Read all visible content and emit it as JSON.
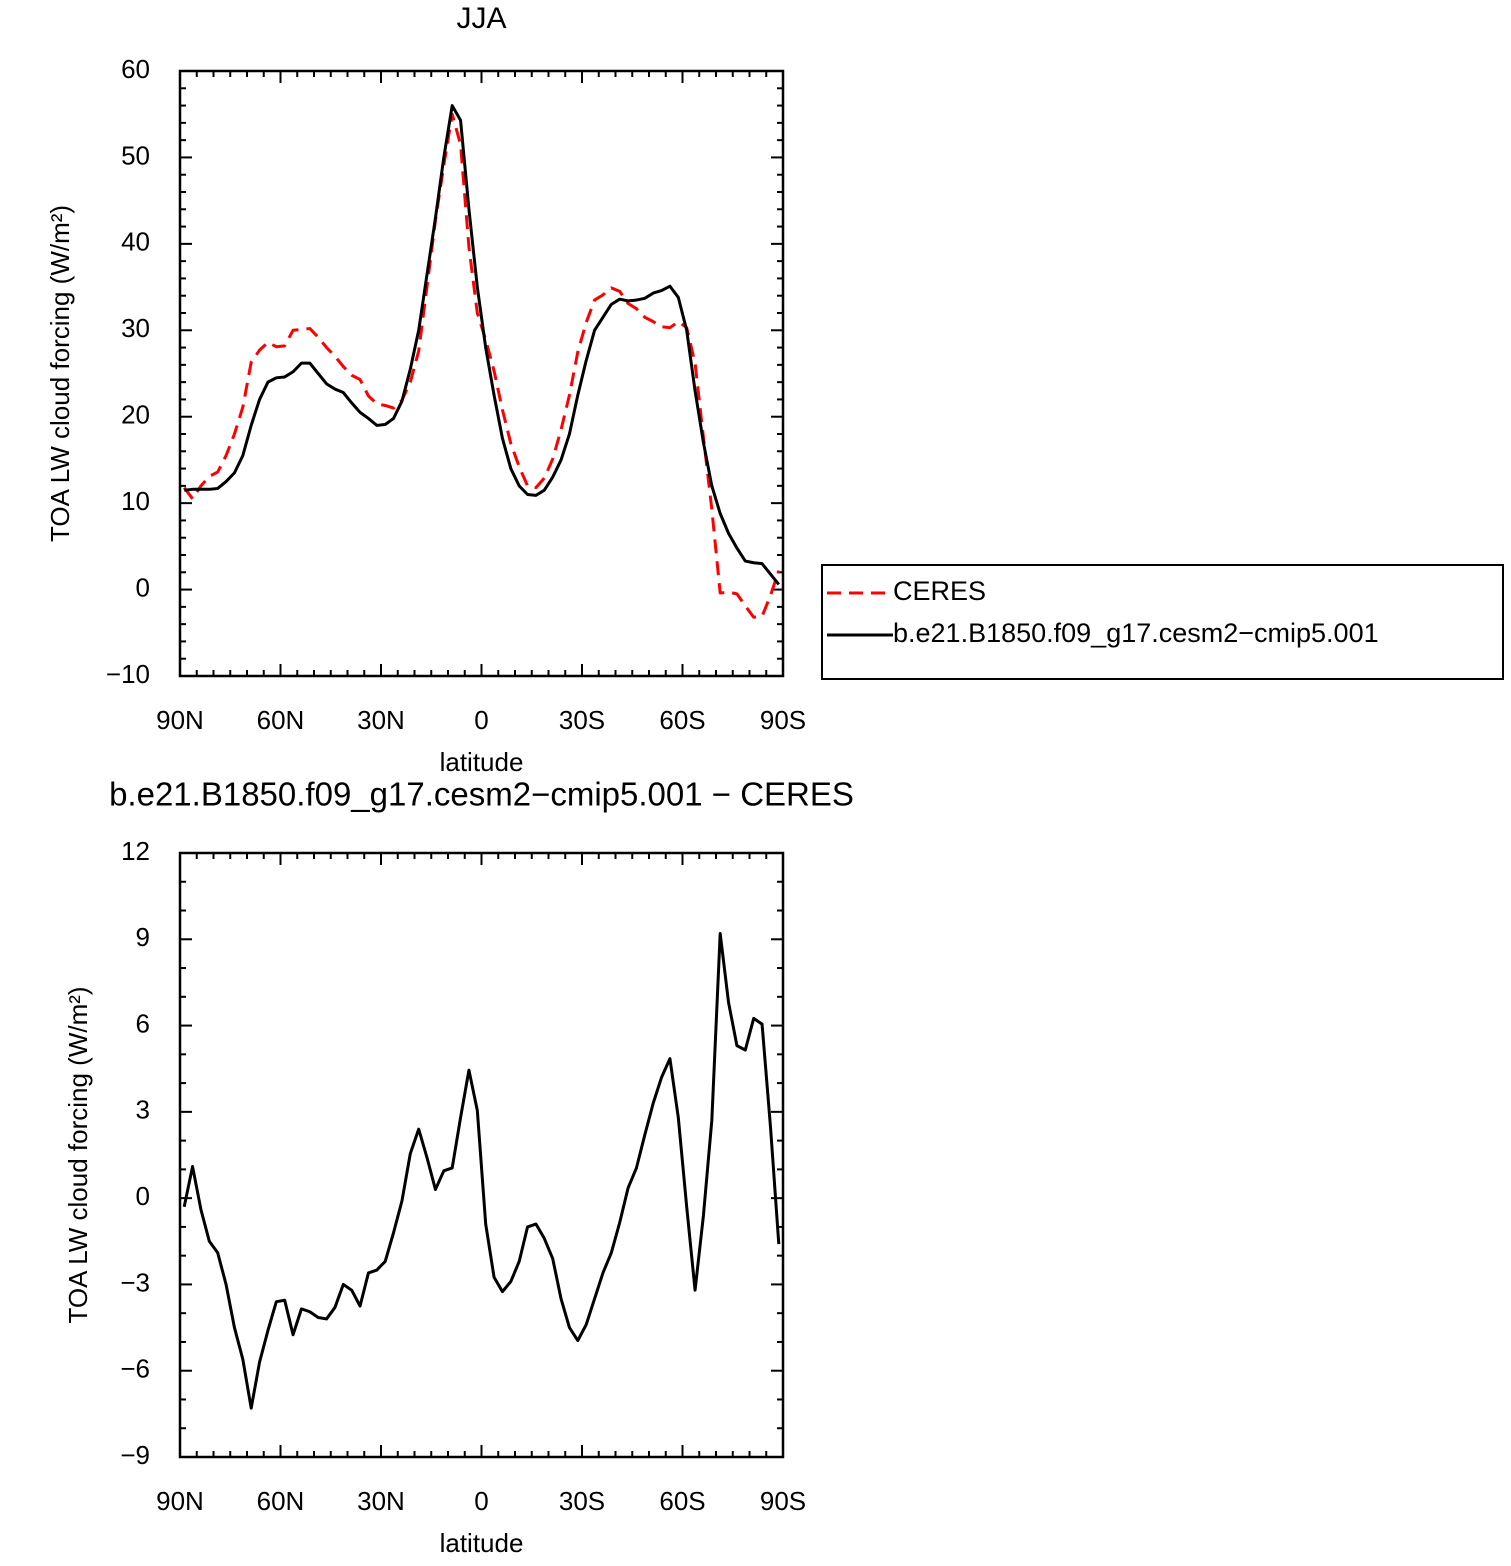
{
  "chart_data": [
    {
      "type": "line",
      "title": "JJA",
      "xlabel": "latitude",
      "ylabel": "TOA LW cloud forcing (W/m²)",
      "x": [
        88.75,
        86.25,
        83.75,
        81.25,
        78.75,
        76.25,
        73.75,
        71.25,
        68.75,
        66.25,
        63.75,
        61.25,
        58.75,
        56.25,
        53.75,
        51.25,
        48.75,
        46.25,
        43.75,
        41.25,
        38.75,
        36.25,
        33.75,
        31.25,
        28.75,
        26.25,
        23.75,
        21.25,
        18.75,
        16.25,
        13.75,
        11.25,
        8.75,
        6.25,
        3.75,
        1.25,
        -1.25,
        -3.75,
        -6.25,
        -8.75,
        -11.25,
        -13.75,
        -16.25,
        -18.75,
        -21.25,
        -23.75,
        -26.25,
        -28.75,
        -31.25,
        -33.75,
        -36.25,
        -38.75,
        -41.25,
        -43.75,
        -46.25,
        -48.75,
        -51.25,
        -53.75,
        -56.25,
        -58.75,
        -61.25,
        -63.75,
        -66.25,
        -68.75,
        -71.25,
        -73.75,
        -76.25,
        -78.75,
        -81.25,
        -83.75,
        -86.25,
        -88.75
      ],
      "xlim": [
        90,
        -90
      ],
      "xticks": [
        {
          "value": 90,
          "label": "90N"
        },
        {
          "value": 60,
          "label": "60N"
        },
        {
          "value": 30,
          "label": "30N"
        },
        0,
        {
          "value": -30,
          "label": "30S"
        },
        {
          "value": -60,
          "label": "60S"
        },
        {
          "value": -90,
          "label": "90S"
        }
      ],
      "xminorticks": [
        85,
        80,
        75,
        70,
        65,
        55,
        50,
        45,
        40,
        35,
        25,
        20,
        15,
        10,
        5,
        -5,
        -10,
        -15,
        -20,
        -25,
        -35,
        -40,
        -45,
        -50,
        -55,
        -65,
        -70,
        -75,
        -80,
        -85
      ],
      "ylim": [
        -10,
        60
      ],
      "yticks": [
        {
          "value": -10,
          "label": "−10"
        },
        0,
        10,
        20,
        30,
        40,
        50,
        60
      ],
      "yminorticks": [
        -8,
        -6,
        -4,
        -2,
        2,
        4,
        6,
        8,
        12,
        14,
        16,
        18,
        22,
        24,
        26,
        28,
        32,
        34,
        36,
        38,
        42,
        44,
        46,
        48,
        52,
        54,
        56,
        58
      ],
      "legend": "outside-right",
      "series": [
        {
          "name": "CERES",
          "color": "#ff0000",
          "dash": "dashed",
          "values": [
            11.8,
            10.5,
            12.0,
            13.1,
            13.6,
            15.5,
            18.0,
            21.1,
            26.3,
            27.7,
            28.6,
            28.1,
            28.2,
            30.0,
            30.1,
            30.2,
            29.2,
            28.0,
            27.0,
            25.8,
            24.8,
            24.3,
            22.4,
            21.5,
            21.3,
            21.0,
            21.9,
            24.0,
            27.6,
            35.1,
            42.7,
            49.1,
            55.0,
            51.5,
            39.6,
            32.0,
            28.9,
            25.3,
            20.8,
            16.9,
            14.2,
            12.0,
            11.8,
            12.9,
            15.1,
            18.5,
            22.5,
            27.5,
            30.9,
            33.5,
            34.1,
            34.9,
            34.5,
            33.1,
            32.5,
            31.5,
            31.0,
            30.4,
            30.3,
            31.0,
            30.3,
            26.2,
            17.6,
            9.3,
            -0.4,
            -0.3,
            -0.5,
            -1.9,
            -3.2,
            -3.1,
            -0.7,
            2.2
          ]
        },
        {
          "name": "b.e21.B1850.f09_g17.cesm2−cmip5.001",
          "color": "#000000",
          "dash": "solid",
          "values": [
            11.5,
            11.6,
            11.6,
            11.6,
            11.7,
            12.5,
            13.5,
            15.5,
            19.0,
            22.0,
            24.0,
            24.5,
            24.6,
            25.2,
            26.2,
            26.2,
            25.0,
            23.8,
            23.2,
            22.8,
            21.6,
            20.5,
            19.8,
            19.0,
            19.1,
            19.8,
            21.8,
            25.5,
            30.0,
            36.5,
            43.0,
            50.0,
            56.0,
            54.3,
            44.0,
            35.0,
            28.0,
            22.5,
            17.5,
            14.0,
            12.0,
            11.0,
            10.9,
            11.5,
            13.0,
            15.0,
            18.0,
            22.5,
            26.5,
            30.0,
            31.5,
            33.0,
            33.6,
            33.4,
            33.5,
            33.7,
            34.3,
            34.6,
            35.1,
            33.8,
            30.0,
            23.0,
            17.0,
            12.0,
            8.8,
            6.5,
            4.8,
            3.3,
            3.1,
            3.0,
            1.8,
            0.6
          ]
        }
      ]
    },
    {
      "type": "line",
      "title": "b.e21.B1850.f09_g17.cesm2−cmip5.001 − CERES",
      "xlabel": "latitude",
      "ylabel": "TOA LW cloud forcing (W/m²)",
      "x": [
        88.75,
        86.25,
        83.75,
        81.25,
        78.75,
        76.25,
        73.75,
        71.25,
        68.75,
        66.25,
        63.75,
        61.25,
        58.75,
        56.25,
        53.75,
        51.25,
        48.75,
        46.25,
        43.75,
        41.25,
        38.75,
        36.25,
        33.75,
        31.25,
        28.75,
        26.25,
        23.75,
        21.25,
        18.75,
        16.25,
        13.75,
        11.25,
        8.75,
        6.25,
        3.75,
        1.25,
        -1.25,
        -3.75,
        -6.25,
        -8.75,
        -11.25,
        -13.75,
        -16.25,
        -18.75,
        -21.25,
        -23.75,
        -26.25,
        -28.75,
        -31.25,
        -33.75,
        -36.25,
        -38.75,
        -41.25,
        -43.75,
        -46.25,
        -48.75,
        -51.25,
        -53.75,
        -56.25,
        -58.75,
        -61.25,
        -63.75,
        -66.25,
        -68.75,
        -71.25,
        -73.75,
        -76.25,
        -78.75,
        -81.25,
        -83.75,
        -86.25,
        -88.75
      ],
      "xlim": [
        90,
        -90
      ],
      "xticks": [
        {
          "value": 90,
          "label": "90N"
        },
        {
          "value": 60,
          "label": "60N"
        },
        {
          "value": 30,
          "label": "30N"
        },
        0,
        {
          "value": -30,
          "label": "30S"
        },
        {
          "value": -60,
          "label": "60S"
        },
        {
          "value": -90,
          "label": "90S"
        }
      ],
      "xminorticks": [
        85,
        80,
        75,
        70,
        65,
        55,
        50,
        45,
        40,
        35,
        25,
        20,
        15,
        10,
        5,
        -5,
        -10,
        -15,
        -20,
        -25,
        -35,
        -40,
        -45,
        -50,
        -55,
        -65,
        -70,
        -75,
        -80,
        -85
      ],
      "ylim": [
        -9,
        12
      ],
      "yticks": [
        {
          "value": -9,
          "label": "−9"
        },
        {
          "value": -6,
          "label": "−6"
        },
        {
          "value": -3,
          "label": "−3"
        },
        0,
        3,
        6,
        9,
        12
      ],
      "yminorticks": [
        -8,
        -7,
        -5,
        -4,
        -2,
        -1,
        1,
        2,
        4,
        5,
        7,
        8,
        10,
        11
      ],
      "series": [
        {
          "color": "#000000",
          "dash": "solid",
          "values": [
            -0.3,
            1.1,
            -0.4,
            -1.5,
            -1.9,
            -3.0,
            -4.5,
            -5.6,
            -7.3,
            -5.7,
            -4.6,
            -3.6,
            -3.55,
            -4.75,
            -3.85,
            -3.95,
            -4.15,
            -4.2,
            -3.8,
            -3.0,
            -3.2,
            -3.75,
            -2.6,
            -2.5,
            -2.2,
            -1.2,
            -0.1,
            1.55,
            2.4,
            1.4,
            0.3,
            0.95,
            1.05,
            2.8,
            4.45,
            3.05,
            -0.9,
            -2.75,
            -3.25,
            -2.9,
            -2.2,
            -1.0,
            -0.9,
            -1.4,
            -2.1,
            -3.5,
            -4.5,
            -4.95,
            -4.4,
            -3.5,
            -2.6,
            -1.9,
            -0.85,
            0.35,
            1.05,
            2.2,
            3.3,
            4.2,
            4.85,
            2.8,
            -0.3,
            -3.2,
            -0.6,
            2.7,
            9.2,
            6.8,
            5.3,
            5.15,
            6.25,
            6.05,
            2.5,
            -1.6
          ]
        }
      ]
    }
  ]
}
